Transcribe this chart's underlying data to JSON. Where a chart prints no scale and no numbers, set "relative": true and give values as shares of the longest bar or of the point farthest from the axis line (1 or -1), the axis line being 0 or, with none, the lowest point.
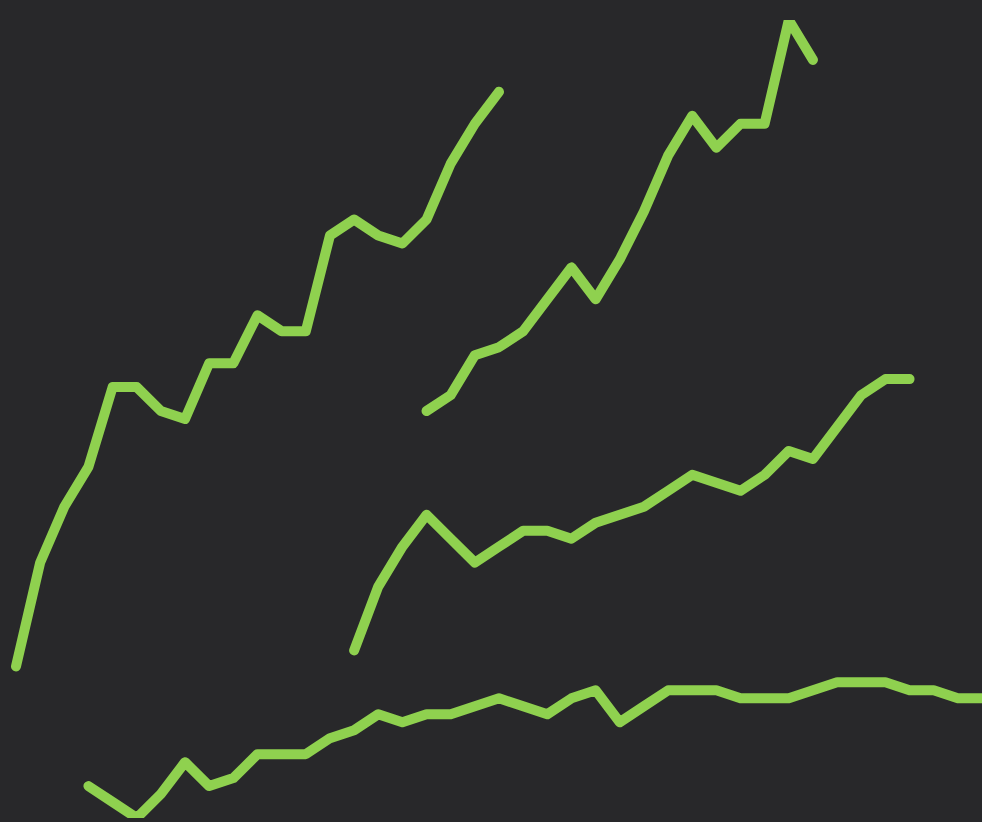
{
  "chart_data": {
    "type": "line",
    "relative": true,
    "marker": "none",
    "categories": [
      null,
      null,
      null,
      null,
      null,
      null,
      null,
      null,
      null,
      null,
      null,
      null,
      null,
      null,
      null,
      null,
      null,
      null,
      null,
      null,
      null,
      null,
      null,
      null,
      null,
      null,
      null,
      null,
      null,
      null,
      null,
      null,
      null,
      null,
      null,
      null,
      null,
      null,
      null,
      null,
      null
    ],
    "series": [
      {
        "color": "#8fd14f",
        "values": [
          0.19,
          0.32,
          0.39,
          0.44,
          0.54,
          0.54,
          0.51,
          0.5,
          0.57,
          0.57,
          0.63,
          0.61,
          0.61,
          0.73,
          0.75,
          0.73,
          0.72,
          0.75,
          0.82,
          0.87,
          0.91,
          null,
          null,
          null,
          null,
          null,
          null,
          null,
          null,
          null,
          null,
          null,
          null,
          null,
          null,
          null,
          null,
          null,
          null,
          null,
          null
        ]
      },
      {
        "color": "#8fd14f",
        "values": [
          null,
          null,
          null,
          null,
          null,
          null,
          null,
          null,
          null,
          null,
          null,
          null,
          null,
          null,
          null,
          null,
          null,
          0.51,
          0.53,
          0.58,
          0.59,
          0.61,
          0.65,
          0.69,
          0.65,
          0.7,
          0.76,
          0.83,
          0.88,
          0.84,
          0.87,
          0.87,
          1,
          0.95,
          null,
          null,
          null,
          null,
          null,
          null,
          null
        ]
      },
      {
        "color": "#8fd14f",
        "values": [
          null,
          null,
          null,
          null,
          null,
          null,
          null,
          null,
          null,
          null,
          null,
          null,
          null,
          null,
          0.21,
          0.29,
          0.34,
          0.38,
          0.35,
          0.32,
          0.34,
          0.36,
          0.36,
          0.35,
          0.37,
          0.38,
          0.39,
          0.41,
          0.43,
          0.42,
          0.41,
          0.43,
          0.46,
          0.45,
          0.49,
          0.53,
          0.55,
          0.55,
          null,
          null,
          null
        ]
      },
      {
        "color": "#8fd14f",
        "values": [
          null,
          null,
          null,
          0.04,
          0.02,
          0,
          0.03,
          0.07,
          0.04,
          0.05,
          0.08,
          0.08,
          0.08,
          0.1,
          0.11,
          0.13,
          0.12,
          0.13,
          0.13,
          0.14,
          0.15,
          0.14,
          0.13,
          0.15,
          0.16,
          0.12,
          0.14,
          0.16,
          0.16,
          0.16,
          0.15,
          0.15,
          0.15,
          0.16,
          0.17,
          0.17,
          0.17,
          0.16,
          0.16,
          0.15,
          0.15
        ]
      }
    ]
  }
}
